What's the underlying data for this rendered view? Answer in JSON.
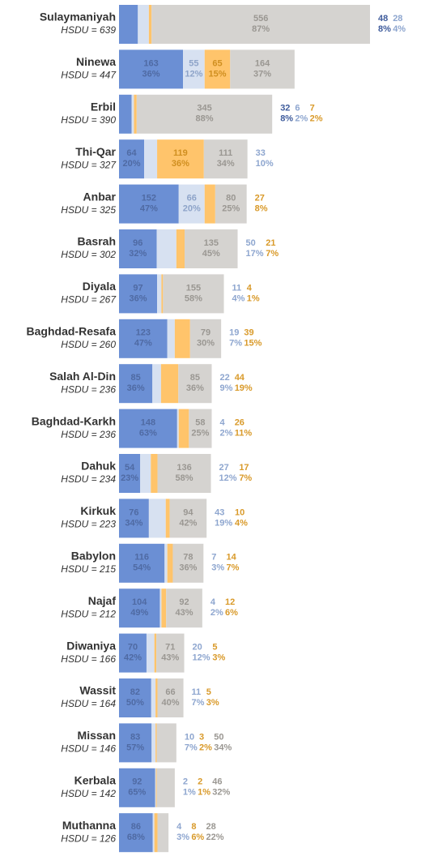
{
  "chart_data": {
    "type": "bar",
    "orientation": "horizontal",
    "categories": [
      "Sulaymaniyah",
      "Ninewa",
      "Erbil",
      "Thi-Qar",
      "Anbar",
      "Basrah",
      "Diyala",
      "Baghdad-Resafa",
      "Salah Al-Din",
      "Baghdad-Karkh",
      "Dahuk",
      "Kirkuk",
      "Babylon",
      "Najaf",
      "Diwaniya",
      "Wassit",
      "Missan",
      "Kerbala",
      "Muthanna"
    ],
    "category_labels": [
      "HSDU = 639",
      "HSDU = 447",
      "HSDU = 390",
      "HSDU = 327",
      "HSDU = 325",
      "HSDU = 302",
      "HSDU = 267",
      "HSDU = 260",
      "HSDU = 236",
      "HSDU = 236",
      "HSDU = 234",
      "HSDU = 223",
      "HSDU = 215",
      "HSDU = 212",
      "HSDU = 166",
      "HSDU = 164",
      "HSDU = 146",
      "HSDU = 142",
      "HSDU = 126"
    ],
    "series": [
      {
        "color": "#6b8fd4",
        "values": [
          48,
          163,
          32,
          64,
          152,
          96,
          97,
          123,
          85,
          148,
          54,
          76,
          116,
          104,
          70,
          82,
          83,
          92,
          86
        ],
        "value_labels": [
          "48",
          "163",
          "32",
          "64",
          "152",
          "96",
          "97",
          "123",
          "85",
          "148",
          "54",
          "76",
          "116",
          "104",
          "70",
          "82",
          "83",
          "92",
          "86"
        ],
        "percent_labels": [
          "8%",
          "36%",
          "8%",
          "20%",
          "47%",
          "32%",
          "36%",
          "47%",
          "36%",
          "63%",
          "23%",
          "34%",
          "54%",
          "49%",
          "42%",
          "50%",
          "57%",
          "65%",
          "68%"
        ]
      },
      {
        "color": "#d7e1f1",
        "values": [
          28,
          55,
          6,
          33,
          66,
          50,
          11,
          19,
          22,
          4,
          27,
          43,
          7,
          4,
          20,
          11,
          10,
          2,
          4
        ],
        "value_labels": [
          "28",
          "55",
          "6",
          "33",
          "66",
          "50",
          "11",
          "19",
          "22",
          "4",
          "27",
          "43",
          "7",
          "4",
          "20",
          "11",
          "10",
          "2",
          "4"
        ],
        "percent_labels": [
          "4%",
          "12%",
          "2%",
          "10%",
          "20%",
          "17%",
          "4%",
          "7%",
          "9%",
          "2%",
          "12%",
          "19%",
          "3%",
          "2%",
          "12%",
          "7%",
          "7%",
          "1%",
          "3%"
        ]
      },
      {
        "color": "#ffc46b",
        "values": [
          7,
          65,
          7,
          119,
          27,
          21,
          4,
          39,
          44,
          26,
          17,
          10,
          14,
          12,
          5,
          5,
          3,
          2,
          8
        ],
        "value_labels": [
          null,
          "65",
          "7",
          "119",
          "27",
          "21",
          "4",
          "39",
          "44",
          "26",
          "17",
          "10",
          "14",
          "12",
          "5",
          "5",
          "3",
          "2",
          "8"
        ],
        "percent_labels": [
          null,
          "15%",
          "2%",
          "36%",
          "8%",
          "7%",
          "1%",
          "15%",
          "19%",
          "11%",
          "7%",
          "4%",
          "7%",
          "6%",
          "3%",
          "3%",
          "2%",
          "1%",
          "6%"
        ]
      },
      {
        "color": "#d5d3d0",
        "values": [
          556,
          164,
          345,
          111,
          80,
          135,
          155,
          79,
          85,
          58,
          136,
          94,
          78,
          92,
          71,
          66,
          50,
          46,
          28
        ],
        "value_labels": [
          "556",
          "164",
          "345",
          "111",
          "80",
          "135",
          "155",
          "79",
          "85",
          "58",
          "136",
          "94",
          "78",
          "92",
          "71",
          "66",
          "50",
          "46",
          "28"
        ],
        "percent_labels": [
          "87%",
          "37%",
          "88%",
          "34%",
          "25%",
          "45%",
          "58%",
          "30%",
          "36%",
          "25%",
          "58%",
          "42%",
          "36%",
          "43%",
          "43%",
          "40%",
          "34%",
          "32%",
          "22%"
        ]
      }
    ]
  }
}
